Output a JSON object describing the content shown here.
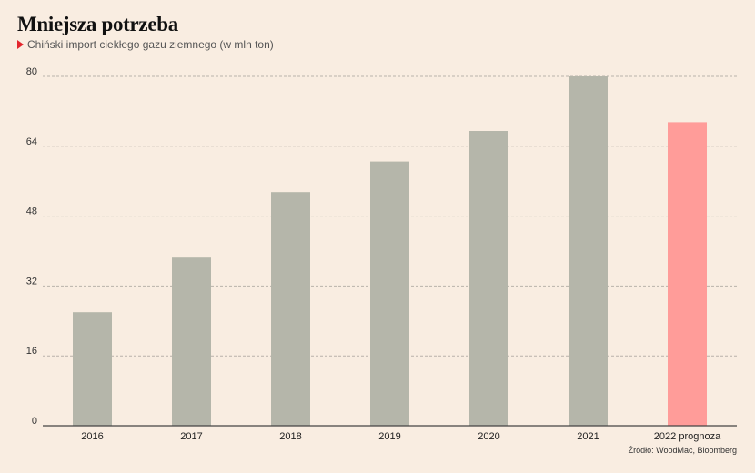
{
  "title": "Mniejsza potrzeba",
  "subtitle": "Chiński import ciekłego gazu ziemnego (w mln ton)",
  "source": "Źródło: WoodMac, Bloomberg",
  "colors": {
    "actual": "#b5b6aa",
    "forecast": "#ff9c99",
    "marker": "#e3262d"
  },
  "chart_data": {
    "type": "bar",
    "title": "Mniejsza potrzeba",
    "subtitle": "Chiński import ciekłego gazu ziemnego (w mln ton)",
    "categories": [
      "2016",
      "2017",
      "2018",
      "2019",
      "2020",
      "2021",
      "2022 prognoza"
    ],
    "values": [
      26,
      38.5,
      53.5,
      60.5,
      67.5,
      80,
      69.5
    ],
    "ylim": [
      0,
      80
    ],
    "yticks": [
      0,
      16,
      32,
      48,
      64,
      80
    ],
    "grid": true,
    "forecast_index": 6
  }
}
